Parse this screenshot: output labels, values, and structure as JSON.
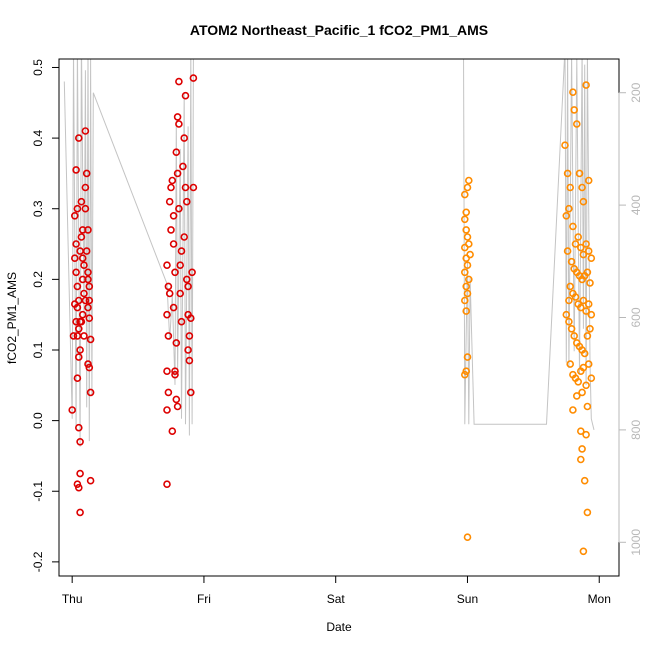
{
  "chart_data": {
    "type": "scatter",
    "title": "ATOM2 Northeast_Pacific_1 fCO2_PM1_AMS",
    "xlabel": "Date",
    "ylabel": "fCO2_PM1_AMS",
    "x_ticks": [
      "Thu",
      "Fri",
      "Sat",
      "Sun",
      "Mon"
    ],
    "x_range_days": [
      -0.1,
      4.15
    ],
    "ylim": [
      -0.22,
      0.512
    ],
    "y_ticks": [
      -0.2,
      -0.1,
      0.0,
      0.1,
      0.2,
      0.3,
      0.4,
      0.5
    ],
    "y_tick_labels": [
      "-0.2",
      "-0.1",
      "0.0",
      "0.1",
      "0.2",
      "0.3",
      "0.4",
      "0.5"
    ],
    "right_axis": {
      "description": "altitude trace (grey line), reversed scale",
      "range": [
        1060,
        140
      ],
      "ticks": [
        200,
        400,
        600,
        800,
        1000
      ],
      "tick_labels": [
        "200",
        "400",
        "600",
        "800",
        "1000"
      ],
      "color": "#b8b8b8"
    },
    "grid": false,
    "legend": "none",
    "marker": "open circle",
    "series": [
      {
        "color": "#dd0000",
        "points": [
          [
            0.0,
            0.015
          ],
          [
            0.02,
            0.165
          ],
          [
            0.01,
            0.12
          ],
          [
            0.03,
            0.25
          ],
          [
            0.02,
            0.29
          ],
          [
            0.04,
            0.3
          ],
          [
            0.03,
            0.355
          ],
          [
            0.05,
            0.4
          ],
          [
            0.03,
            0.21
          ],
          [
            0.04,
            0.19
          ],
          [
            0.05,
            0.17
          ],
          [
            0.04,
            0.16
          ],
          [
            0.06,
            0.14
          ],
          [
            0.05,
            0.13
          ],
          [
            0.04,
            0.12
          ],
          [
            0.06,
            0.1
          ],
          [
            0.05,
            0.09
          ],
          [
            0.04,
            0.06
          ],
          [
            0.05,
            -0.01
          ],
          [
            0.06,
            -0.03
          ],
          [
            0.04,
            -0.09
          ],
          [
            0.06,
            -0.075
          ],
          [
            0.05,
            -0.095
          ],
          [
            0.06,
            -0.13
          ],
          [
            0.07,
            0.31
          ],
          [
            0.08,
            0.27
          ],
          [
            0.07,
            0.26
          ],
          [
            0.09,
            0.22
          ],
          [
            0.08,
            0.2
          ],
          [
            0.09,
            0.18
          ],
          [
            0.08,
            0.15
          ],
          [
            0.07,
            0.14
          ],
          [
            0.09,
            0.12
          ],
          [
            0.1,
            0.41
          ],
          [
            0.1,
            0.33
          ],
          [
            0.1,
            0.3
          ],
          [
            0.11,
            0.35
          ],
          [
            0.12,
            0.27
          ],
          [
            0.11,
            0.24
          ],
          [
            0.12,
            0.21
          ],
          [
            0.13,
            0.19
          ],
          [
            0.12,
            0.16
          ],
          [
            0.13,
            0.145
          ],
          [
            0.14,
            0.115
          ],
          [
            0.12,
            0.08
          ],
          [
            0.13,
            0.075
          ],
          [
            0.14,
            0.04
          ],
          [
            0.14,
            -0.085
          ],
          [
            0.13,
            0.17
          ],
          [
            0.12,
            0.2
          ],
          [
            0.02,
            0.23
          ],
          [
            0.03,
            0.14
          ],
          [
            0.06,
            0.24
          ],
          [
            0.08,
            0.23
          ],
          [
            0.1,
            0.17
          ]
        ]
      },
      {
        "color": "#dd0000",
        "points": [
          [
            0.72,
            0.22
          ],
          [
            0.73,
            0.19
          ],
          [
            0.72,
            0.15
          ],
          [
            0.73,
            0.12
          ],
          [
            0.72,
            0.07
          ],
          [
            0.73,
            0.04
          ],
          [
            0.72,
            0.015
          ],
          [
            0.72,
            -0.09
          ],
          [
            0.74,
            0.31
          ],
          [
            0.75,
            0.33
          ],
          [
            0.75,
            0.27
          ],
          [
            0.76,
            0.34
          ],
          [
            0.77,
            0.29
          ],
          [
            0.77,
            0.25
          ],
          [
            0.78,
            0.21
          ],
          [
            0.77,
            0.16
          ],
          [
            0.79,
            0.11
          ],
          [
            0.78,
            0.07
          ],
          [
            0.79,
            0.03
          ],
          [
            0.8,
            0.02
          ],
          [
            0.79,
            0.38
          ],
          [
            0.8,
            0.35
          ],
          [
            0.81,
            0.42
          ],
          [
            0.81,
            0.48
          ],
          [
            0.8,
            0.43
          ],
          [
            0.81,
            0.3
          ],
          [
            0.82,
            0.22
          ],
          [
            0.82,
            0.18
          ],
          [
            0.83,
            0.14
          ],
          [
            0.84,
            0.36
          ],
          [
            0.85,
            0.4
          ],
          [
            0.86,
            0.46
          ],
          [
            0.86,
            0.33
          ],
          [
            0.87,
            0.31
          ],
          [
            0.87,
            0.2
          ],
          [
            0.88,
            0.19
          ],
          [
            0.88,
            0.15
          ],
          [
            0.89,
            0.12
          ],
          [
            0.88,
            0.1
          ],
          [
            0.89,
            0.085
          ],
          [
            0.9,
            0.04
          ],
          [
            0.91,
            0.21
          ],
          [
            0.92,
            0.33
          ],
          [
            0.92,
            0.485
          ],
          [
            0.9,
            0.145
          ],
          [
            0.76,
            -0.015
          ],
          [
            0.78,
            0.065
          ],
          [
            0.83,
            0.24
          ],
          [
            0.85,
            0.26
          ],
          [
            0.74,
            0.18
          ]
        ]
      },
      {
        "color": "#ff8c00",
        "points": [
          [
            2.98,
            0.32
          ],
          [
            2.99,
            0.295
          ],
          [
            2.98,
            0.285
          ],
          [
            3.0,
            0.33
          ],
          [
            3.01,
            0.34
          ],
          [
            2.99,
            0.27
          ],
          [
            3.0,
            0.26
          ],
          [
            2.98,
            0.245
          ],
          [
            3.01,
            0.25
          ],
          [
            2.99,
            0.23
          ],
          [
            3.0,
            0.22
          ],
          [
            2.98,
            0.21
          ],
          [
            3.01,
            0.2
          ],
          [
            2.99,
            0.19
          ],
          [
            3.0,
            0.18
          ],
          [
            2.98,
            0.17
          ],
          [
            2.99,
            0.155
          ],
          [
            3.0,
            0.09
          ],
          [
            2.99,
            0.07
          ],
          [
            2.98,
            0.065
          ],
          [
            3.0,
            -0.165
          ],
          [
            3.02,
            0.235
          ]
        ]
      },
      {
        "color": "#ff8c00",
        "points": [
          [
            3.74,
            0.39
          ],
          [
            3.76,
            0.35
          ],
          [
            3.78,
            0.33
          ],
          [
            3.8,
            0.465
          ],
          [
            3.81,
            0.44
          ],
          [
            3.83,
            0.42
          ],
          [
            3.85,
            0.35
          ],
          [
            3.87,
            0.33
          ],
          [
            3.88,
            0.31
          ],
          [
            3.9,
            0.475
          ],
          [
            3.92,
            0.34
          ],
          [
            3.75,
            0.29
          ],
          [
            3.77,
            0.3
          ],
          [
            3.8,
            0.275
          ],
          [
            3.82,
            0.25
          ],
          [
            3.84,
            0.26
          ],
          [
            3.86,
            0.245
          ],
          [
            3.88,
            0.235
          ],
          [
            3.9,
            0.25
          ],
          [
            3.92,
            0.24
          ],
          [
            3.94,
            0.23
          ],
          [
            3.76,
            0.24
          ],
          [
            3.79,
            0.225
          ],
          [
            3.81,
            0.215
          ],
          [
            3.83,
            0.21
          ],
          [
            3.85,
            0.205
          ],
          [
            3.87,
            0.2
          ],
          [
            3.89,
            0.205
          ],
          [
            3.91,
            0.21
          ],
          [
            3.93,
            0.195
          ],
          [
            3.78,
            0.19
          ],
          [
            3.8,
            0.18
          ],
          [
            3.82,
            0.175
          ],
          [
            3.84,
            0.165
          ],
          [
            3.86,
            0.16
          ],
          [
            3.88,
            0.17
          ],
          [
            3.9,
            0.155
          ],
          [
            3.92,
            0.165
          ],
          [
            3.94,
            0.15
          ],
          [
            3.77,
            0.14
          ],
          [
            3.79,
            0.13
          ],
          [
            3.81,
            0.12
          ],
          [
            3.83,
            0.11
          ],
          [
            3.85,
            0.105
          ],
          [
            3.87,
            0.1
          ],
          [
            3.89,
            0.095
          ],
          [
            3.91,
            0.12
          ],
          [
            3.93,
            0.13
          ],
          [
            3.78,
            0.08
          ],
          [
            3.8,
            0.065
          ],
          [
            3.82,
            0.06
          ],
          [
            3.84,
            0.055
          ],
          [
            3.86,
            0.07
          ],
          [
            3.88,
            0.075
          ],
          [
            3.9,
            0.05
          ],
          [
            3.92,
            0.08
          ],
          [
            3.94,
            0.06
          ],
          [
            3.83,
            0.035
          ],
          [
            3.87,
            0.04
          ],
          [
            3.91,
            0.02
          ],
          [
            3.8,
            0.015
          ],
          [
            3.86,
            -0.015
          ],
          [
            3.9,
            -0.02
          ],
          [
            3.87,
            -0.04
          ],
          [
            3.86,
            -0.055
          ],
          [
            3.89,
            -0.085
          ],
          [
            3.91,
            -0.13
          ],
          [
            3.88,
            -0.185
          ],
          [
            3.75,
            0.15
          ],
          [
            3.77,
            0.17
          ]
        ]
      }
    ],
    "altitude_series": [
      [
        -0.06,
        180
      ],
      [
        0.0,
        780
      ],
      [
        0.01,
        120
      ],
      [
        0.03,
        800
      ],
      [
        0.04,
        110
      ],
      [
        0.06,
        830
      ],
      [
        0.07,
        100
      ],
      [
        0.09,
        600
      ],
      [
        0.1,
        160
      ],
      [
        0.11,
        760
      ],
      [
        0.12,
        120
      ],
      [
        0.13,
        820
      ],
      [
        0.14,
        140
      ],
      [
        0.15,
        740
      ],
      [
        0.16,
        200
      ],
      [
        0.72,
        540
      ],
      [
        0.74,
        640
      ],
      [
        0.76,
        560
      ],
      [
        0.78,
        720
      ],
      [
        0.79,
        250
      ],
      [
        0.8,
        700
      ],
      [
        0.82,
        300
      ],
      [
        0.83,
        780
      ],
      [
        0.85,
        200
      ],
      [
        0.86,
        790
      ],
      [
        0.88,
        260
      ],
      [
        0.89,
        810
      ],
      [
        0.9,
        120
      ],
      [
        0.91,
        790
      ],
      [
        0.92,
        140
      ],
      [
        1.5,
        120
      ],
      [
        2.0,
        115
      ],
      [
        2.97,
        115
      ],
      [
        2.98,
        790
      ],
      [
        2.99,
        630
      ],
      [
        3.0,
        500
      ],
      [
        3.01,
        790
      ],
      [
        3.02,
        530
      ],
      [
        3.05,
        790
      ],
      [
        3.6,
        790
      ],
      [
        3.74,
        120
      ],
      [
        3.75,
        680
      ],
      [
        3.76,
        120
      ],
      [
        3.77,
        690
      ],
      [
        3.79,
        130
      ],
      [
        3.81,
        660
      ],
      [
        3.83,
        140
      ],
      [
        3.85,
        700
      ],
      [
        3.87,
        120
      ],
      [
        3.88,
        620
      ],
      [
        3.89,
        150
      ],
      [
        3.9,
        720
      ],
      [
        3.91,
        130
      ],
      [
        3.93,
        680
      ],
      [
        3.94,
        780
      ],
      [
        3.95,
        790
      ],
      [
        3.96,
        800
      ]
    ]
  }
}
